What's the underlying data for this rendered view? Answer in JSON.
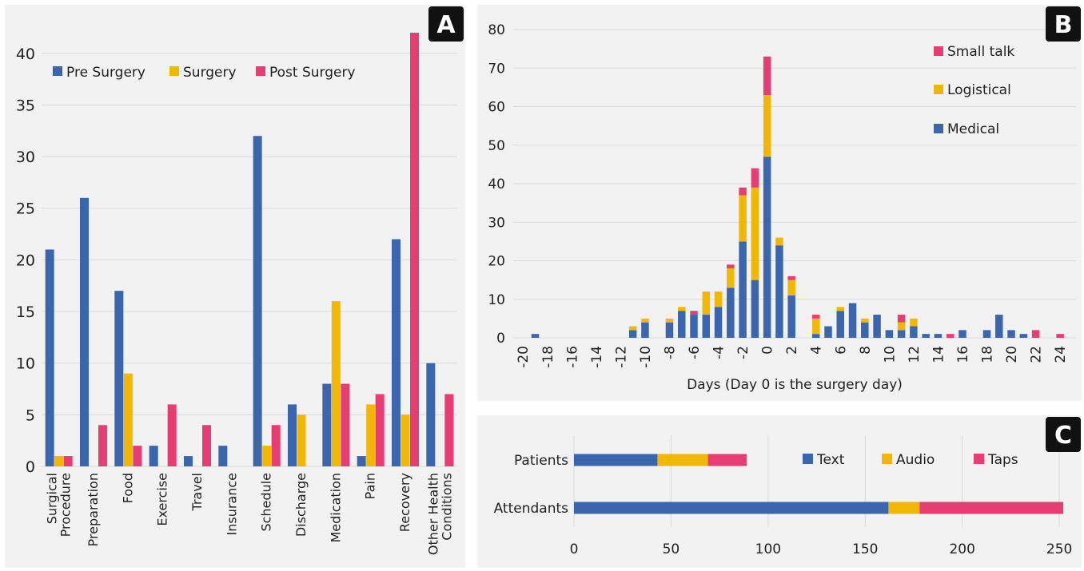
{
  "colors": {
    "blue": "#3b66ad",
    "yellow": "#f2b705",
    "pink": "#e63e72"
  },
  "panels": {
    "a": {
      "badge": "A"
    },
    "b": {
      "badge": "B"
    },
    "c": {
      "badge": "C"
    }
  },
  "chart_data": [
    {
      "id": "A",
      "type": "bar",
      "title": "",
      "xlabel": "",
      "ylabel": "",
      "ylim": [
        0,
        43
      ],
      "yticks": [
        0,
        5,
        10,
        15,
        20,
        25,
        30,
        35,
        40
      ],
      "grid": true,
      "legend_position": "top-left",
      "categories": [
        "Surgical\nProcedure",
        "Preparation",
        "Food",
        "Exercise",
        "Travel",
        "Insurance",
        "Schedule",
        "Discharge",
        "Medication",
        "Pain",
        "Recovery",
        "Other Health\nConditions"
      ],
      "series": [
        {
          "name": "Pre Surgery",
          "color": "#3b66ad",
          "values": [
            21,
            26,
            17,
            2,
            1,
            2,
            32,
            6,
            8,
            1,
            22,
            10
          ]
        },
        {
          "name": "Surgery",
          "color": "#f2b705",
          "values": [
            1,
            0,
            9,
            0,
            0,
            0,
            2,
            5,
            16,
            6,
            5,
            0
          ]
        },
        {
          "name": "Post Surgery",
          "color": "#e63e72",
          "values": [
            1,
            4,
            2,
            6,
            4,
            0,
            4,
            0,
            8,
            7,
            42,
            7
          ]
        }
      ]
    },
    {
      "id": "B",
      "type": "bar",
      "stacked": true,
      "title": "",
      "xlabel": "Days (Day 0 is the surgery day)",
      "ylabel": "",
      "ylim": [
        0,
        80
      ],
      "yticks": [
        0,
        10,
        20,
        30,
        40,
        50,
        60,
        70,
        80
      ],
      "xticks": [
        -20,
        -18,
        -16,
        -14,
        -12,
        -10,
        -8,
        -6,
        -4,
        -2,
        0,
        2,
        4,
        6,
        8,
        10,
        12,
        14,
        16,
        18,
        20,
        22,
        24
      ],
      "grid": true,
      "legend_position": "top-right",
      "x": [
        -20,
        -19,
        -18,
        -17,
        -16,
        -15,
        -14,
        -13,
        -12,
        -11,
        -10,
        -9,
        -8,
        -7,
        -6,
        -5,
        -4,
        -3,
        -2,
        -1,
        0,
        1,
        2,
        3,
        4,
        5,
        6,
        7,
        8,
        9,
        10,
        11,
        12,
        13,
        14,
        15,
        16,
        17,
        18,
        19,
        20,
        21,
        22,
        23,
        24
      ],
      "series": [
        {
          "name": "Medical",
          "color": "#3b66ad",
          "values": [
            0,
            1,
            0,
            0,
            0,
            0,
            0,
            0,
            0,
            2,
            4,
            0,
            4,
            7,
            6,
            6,
            8,
            13,
            25,
            15,
            47,
            24,
            11,
            0,
            1,
            3,
            7,
            9,
            4,
            6,
            2,
            2,
            3,
            1,
            1,
            0,
            2,
            0,
            2,
            6,
            2,
            1,
            0,
            0,
            0
          ]
        },
        {
          "name": "Logistical",
          "color": "#f2b705",
          "values": [
            0,
            0,
            0,
            0,
            0,
            0,
            0,
            0,
            0,
            1,
            1,
            0,
            1,
            1,
            0,
            6,
            4,
            5,
            12,
            24,
            16,
            2,
            4,
            0,
            4,
            0,
            1,
            0,
            1,
            0,
            0,
            2,
            2,
            0,
            0,
            0,
            0,
            0,
            0,
            0,
            0,
            0,
            0,
            0,
            0
          ]
        },
        {
          "name": "Small talk",
          "color": "#e63e72",
          "values": [
            0,
            0,
            0,
            0,
            0,
            0,
            0,
            0,
            0,
            0,
            0,
            0,
            0,
            0,
            1,
            0,
            0,
            1,
            2,
            5,
            10,
            0,
            1,
            0,
            1,
            0,
            0,
            0,
            0,
            0,
            0,
            2,
            0,
            0,
            0,
            1,
            0,
            0,
            0,
            0,
            0,
            0,
            2,
            0,
            1
          ]
        }
      ]
    },
    {
      "id": "C",
      "type": "bar",
      "orientation": "horizontal",
      "stacked": true,
      "title": "",
      "xlabel": "",
      "ylabel": "",
      "xlim": [
        0,
        252
      ],
      "xticks": [
        0,
        50,
        100,
        150,
        200,
        250
      ],
      "grid": true,
      "legend_position": "top-right",
      "categories": [
        "Patients",
        "Attendants"
      ],
      "series": [
        {
          "name": "Text",
          "color": "#3b66ad",
          "values": [
            43,
            162
          ]
        },
        {
          "name": "Audio",
          "color": "#f2b705",
          "values": [
            26,
            16
          ]
        },
        {
          "name": "Taps",
          "color": "#e63e72",
          "values": [
            20,
            74
          ]
        }
      ]
    }
  ]
}
